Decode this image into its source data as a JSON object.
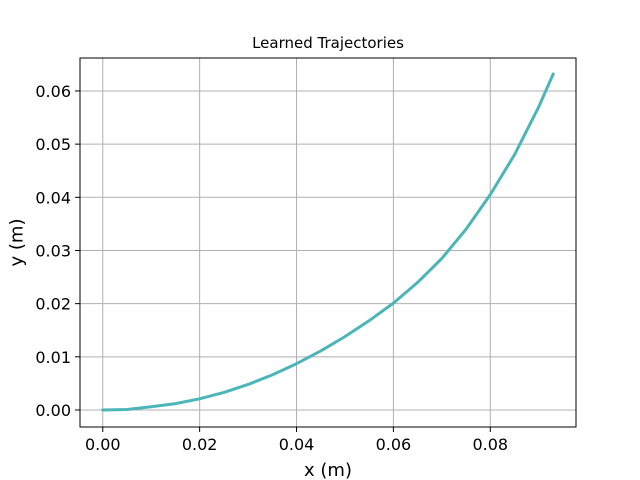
{
  "chart_data": {
    "type": "line",
    "title": "Learned Trajectories",
    "xlabel": "x (m)",
    "ylabel": "y (m)",
    "xlim": [
      -0.0047,
      0.0977
    ],
    "ylim": [
      -0.0032,
      0.0662
    ],
    "xticks": [
      0.0,
      0.02,
      0.04,
      0.06,
      0.08
    ],
    "xtick_labels": [
      "0.00",
      "0.02",
      "0.04",
      "0.06",
      "0.08"
    ],
    "yticks": [
      0.0,
      0.01,
      0.02,
      0.03,
      0.04,
      0.05,
      0.06
    ],
    "ytick_labels": [
      "0.00",
      "0.01",
      "0.02",
      "0.03",
      "0.04",
      "0.05",
      "0.06"
    ],
    "grid": true,
    "series": [
      {
        "color": "#4cb5b8",
        "x": [
          0.0,
          0.005,
          0.01,
          0.015,
          0.02,
          0.025,
          0.03,
          0.035,
          0.04,
          0.045,
          0.05,
          0.055,
          0.06,
          0.065,
          0.07,
          0.075,
          0.08,
          0.085,
          0.09,
          0.093
        ],
        "y": [
          0.0,
          0.0001,
          0.0006,
          0.0012,
          0.0021,
          0.0033,
          0.0048,
          0.0066,
          0.0087,
          0.0111,
          0.0138,
          0.0168,
          0.0201,
          0.024,
          0.0285,
          0.034,
          0.0405,
          0.048,
          0.057,
          0.0632
        ]
      }
    ]
  }
}
